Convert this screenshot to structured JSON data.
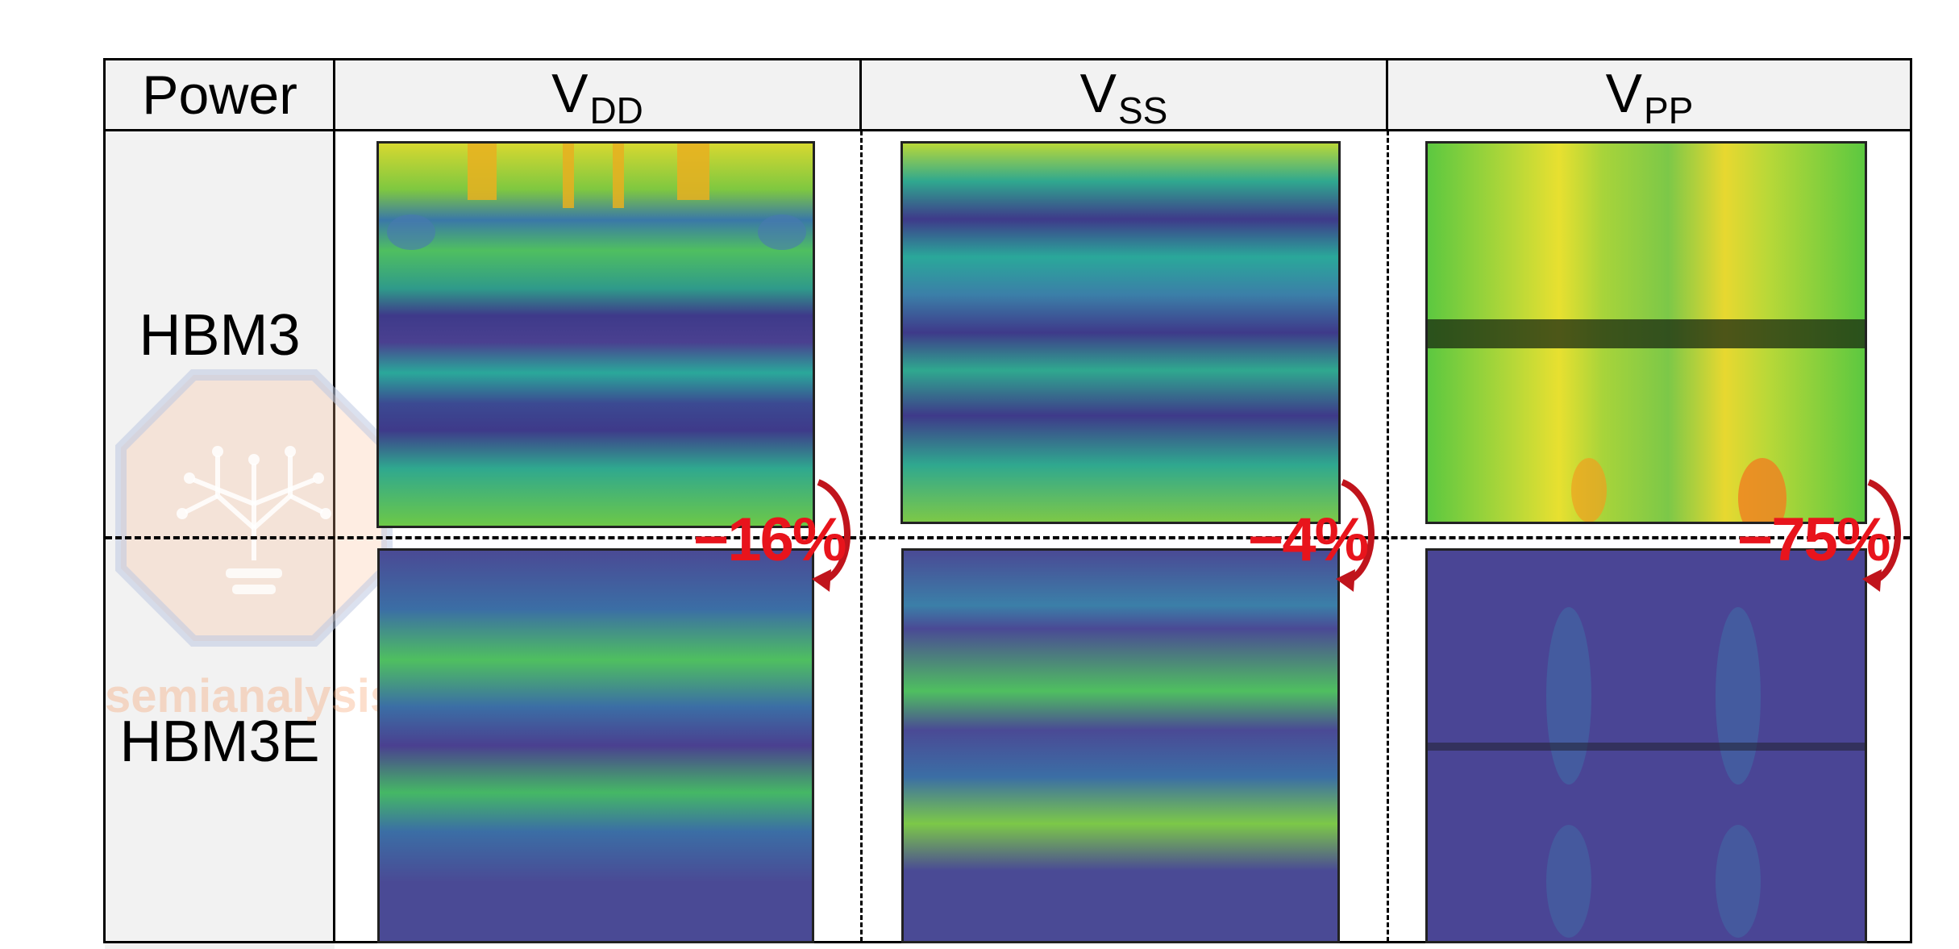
{
  "table": {
    "corner": "Power",
    "columns": [
      {
        "main": "V",
        "sub": "DD"
      },
      {
        "main": "V",
        "sub": "SS"
      },
      {
        "main": "V",
        "sub": "PP"
      }
    ],
    "rows": [
      "HBM3",
      "HBM3E"
    ]
  },
  "reductions": [
    {
      "rail": "VDD",
      "value": "−16%"
    },
    {
      "rail": "VSS",
      "value": "−4%"
    },
    {
      "rail": "VPP",
      "value": "−75%"
    }
  ],
  "watermark": {
    "text": "semianalysis"
  },
  "colors": {
    "reduction": "#e8141c",
    "header_bg": "#f2f2f2",
    "heatmap_low": "#4a3f8f",
    "heatmap_mid": "#2aa89a",
    "heatmap_high": "#e8e030"
  }
}
